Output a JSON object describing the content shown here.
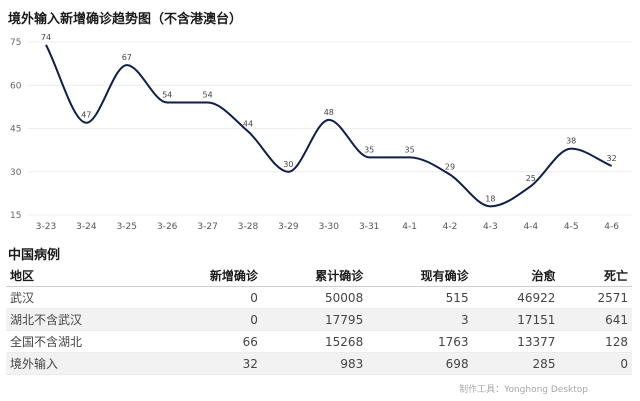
{
  "chart_data": {
    "type": "line",
    "title": "境外输入新增确诊趋势图（不含港澳台）",
    "categories": [
      "3-23",
      "3-24",
      "3-25",
      "3-26",
      "3-27",
      "3-28",
      "3-29",
      "3-30",
      "3-31",
      "4-1",
      "4-2",
      "4-3",
      "4-4",
      "4-5",
      "4-6"
    ],
    "series": [
      {
        "values": [
          74,
          47,
          67,
          54,
          54,
          44,
          30,
          48,
          35,
          35,
          29,
          18,
          25,
          38,
          32
        ]
      }
    ],
    "y_ticks": [
      15,
      30,
      45,
      60,
      75
    ],
    "ylim": [
      15,
      75
    ],
    "grid": true,
    "line_color": "#0d1f4a"
  },
  "table": {
    "title": "中国病例",
    "columns": [
      "地区",
      "新增确诊",
      "累计确诊",
      "现有确诊",
      "治愈",
      "死亡"
    ],
    "rows": [
      [
        "武汉",
        "0",
        "50008",
        "515",
        "46922",
        "2571"
      ],
      [
        "湖北不含武汉",
        "0",
        "17795",
        "3",
        "17151",
        "641"
      ],
      [
        "全国不含湖北",
        "66",
        "15268",
        "1763",
        "13377",
        "128"
      ],
      [
        "境外输入",
        "32",
        "983",
        "698",
        "285",
        "0"
      ]
    ]
  },
  "footer": "制作工具：Yonghong Desktop"
}
